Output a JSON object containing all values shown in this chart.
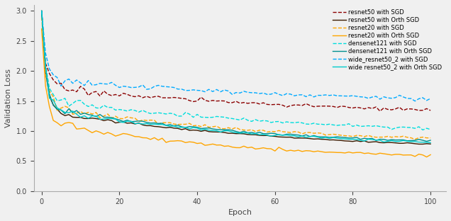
{
  "title": "",
  "xlabel": "Epoch",
  "ylabel": "Validation Loss",
  "xlim": [
    -2,
    104
  ],
  "ylim": [
    0.0,
    3.1
  ],
  "yticks": [
    0.0,
    0.5,
    1.0,
    1.5,
    2.0,
    2.5,
    3.0
  ],
  "xticks": [
    0,
    20,
    40,
    60,
    80,
    100
  ],
  "figsize": [
    6.36,
    3.12
  ],
  "dpi": 100,
  "series": [
    {
      "label": "resnet50 with SGD",
      "color": "#8B0000",
      "linestyle": "dashed",
      "linewidth": 1.0,
      "start": 3.0,
      "end": 1.18,
      "noise": 0.06,
      "decay_fast": 0.9,
      "decay_slow": 0.012,
      "alpha": 1.0
    },
    {
      "label": "resnet50 with Orth SGD",
      "color": "#3B1A00",
      "linestyle": "solid",
      "linewidth": 1.0,
      "start": 3.0,
      "end": 0.62,
      "noise": 0.025,
      "decay_fast": 0.95,
      "decay_slow": 0.015,
      "alpha": 1.0
    },
    {
      "label": "resnet20 with SGD",
      "color": "#FFA500",
      "linestyle": "dashed",
      "linewidth": 1.0,
      "start": 2.9,
      "end": 0.78,
      "noise": 0.055,
      "decay_fast": 0.9,
      "decay_slow": 0.018,
      "alpha": 1.0
    },
    {
      "label": "resnet20 with Orth SGD",
      "color": "#FFA500",
      "linestyle": "solid",
      "linewidth": 1.0,
      "start": 2.7,
      "end": 0.5,
      "noise": 0.06,
      "decay_fast": 0.92,
      "decay_slow": 0.02,
      "alpha": 1.0
    },
    {
      "label": "densenet121 with SGD",
      "color": "#00DDDD",
      "linestyle": "dashed",
      "linewidth": 1.0,
      "start": 3.0,
      "end": 0.9,
      "noise": 0.055,
      "decay_fast": 0.88,
      "decay_slow": 0.015,
      "alpha": 1.0
    },
    {
      "label": "densenet121 with Orth SGD",
      "color": "#009090",
      "linestyle": "solid",
      "linewidth": 1.0,
      "start": 3.0,
      "end": 0.72,
      "noise": 0.04,
      "decay_fast": 0.9,
      "decay_slow": 0.018,
      "alpha": 1.0
    },
    {
      "label": "wide_resnet50_2 with SGD",
      "color": "#00AAFF",
      "linestyle": "dashed",
      "linewidth": 1.0,
      "start": 3.0,
      "end": 1.35,
      "noise": 0.065,
      "decay_fast": 0.88,
      "decay_slow": 0.01,
      "alpha": 1.0
    },
    {
      "label": "wide resnet50_2 with Orth SGD",
      "color": "#00CCCC",
      "linestyle": "solid",
      "linewidth": 1.0,
      "start": 3.0,
      "end": 0.7,
      "noise": 0.04,
      "decay_fast": 0.92,
      "decay_slow": 0.018,
      "alpha": 1.0
    }
  ],
  "legend_fontsize": 6.0,
  "axis_fontsize": 8,
  "tick_fontsize": 7,
  "bg_color": "#f0f0f0"
}
